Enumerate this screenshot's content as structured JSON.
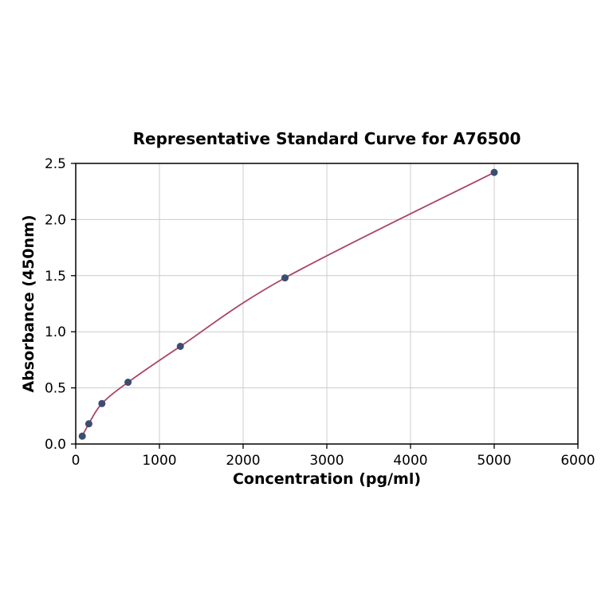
{
  "chart_data": {
    "type": "scatter",
    "title": "Representative Standard Curve for A76500",
    "xlabel": "Concentration (pg/ml)",
    "ylabel": "Absorbance (450nm)",
    "xlim": [
      0,
      6000
    ],
    "ylim": [
      0.0,
      2.5
    ],
    "x_ticks": [
      0,
      1000,
      2000,
      3000,
      4000,
      5000,
      6000
    ],
    "x_tick_labels": [
      "0",
      "1000",
      "2000",
      "3000",
      "4000",
      "5000",
      "6000"
    ],
    "y_ticks": [
      0.0,
      0.5,
      1.0,
      1.5,
      2.0,
      2.5
    ],
    "y_tick_labels": [
      "0.0",
      "0.5",
      "1.0",
      "1.5",
      "2.0",
      "2.5"
    ],
    "grid": true,
    "legend": "none",
    "colors": {
      "curve_line": "#aa4466",
      "marker_fill": "#3b4d71",
      "grid_line": "#cccccc",
      "frame": "#000000"
    },
    "series": [
      {
        "name": "standard-curve",
        "points": [
          {
            "x": 78.1,
            "y": 0.07
          },
          {
            "x": 156.3,
            "y": 0.18
          },
          {
            "x": 312.5,
            "y": 0.36
          },
          {
            "x": 625,
            "y": 0.55
          },
          {
            "x": 1250,
            "y": 0.87
          },
          {
            "x": 2500,
            "y": 1.48
          },
          {
            "x": 5000,
            "y": 2.42
          }
        ]
      }
    ]
  }
}
